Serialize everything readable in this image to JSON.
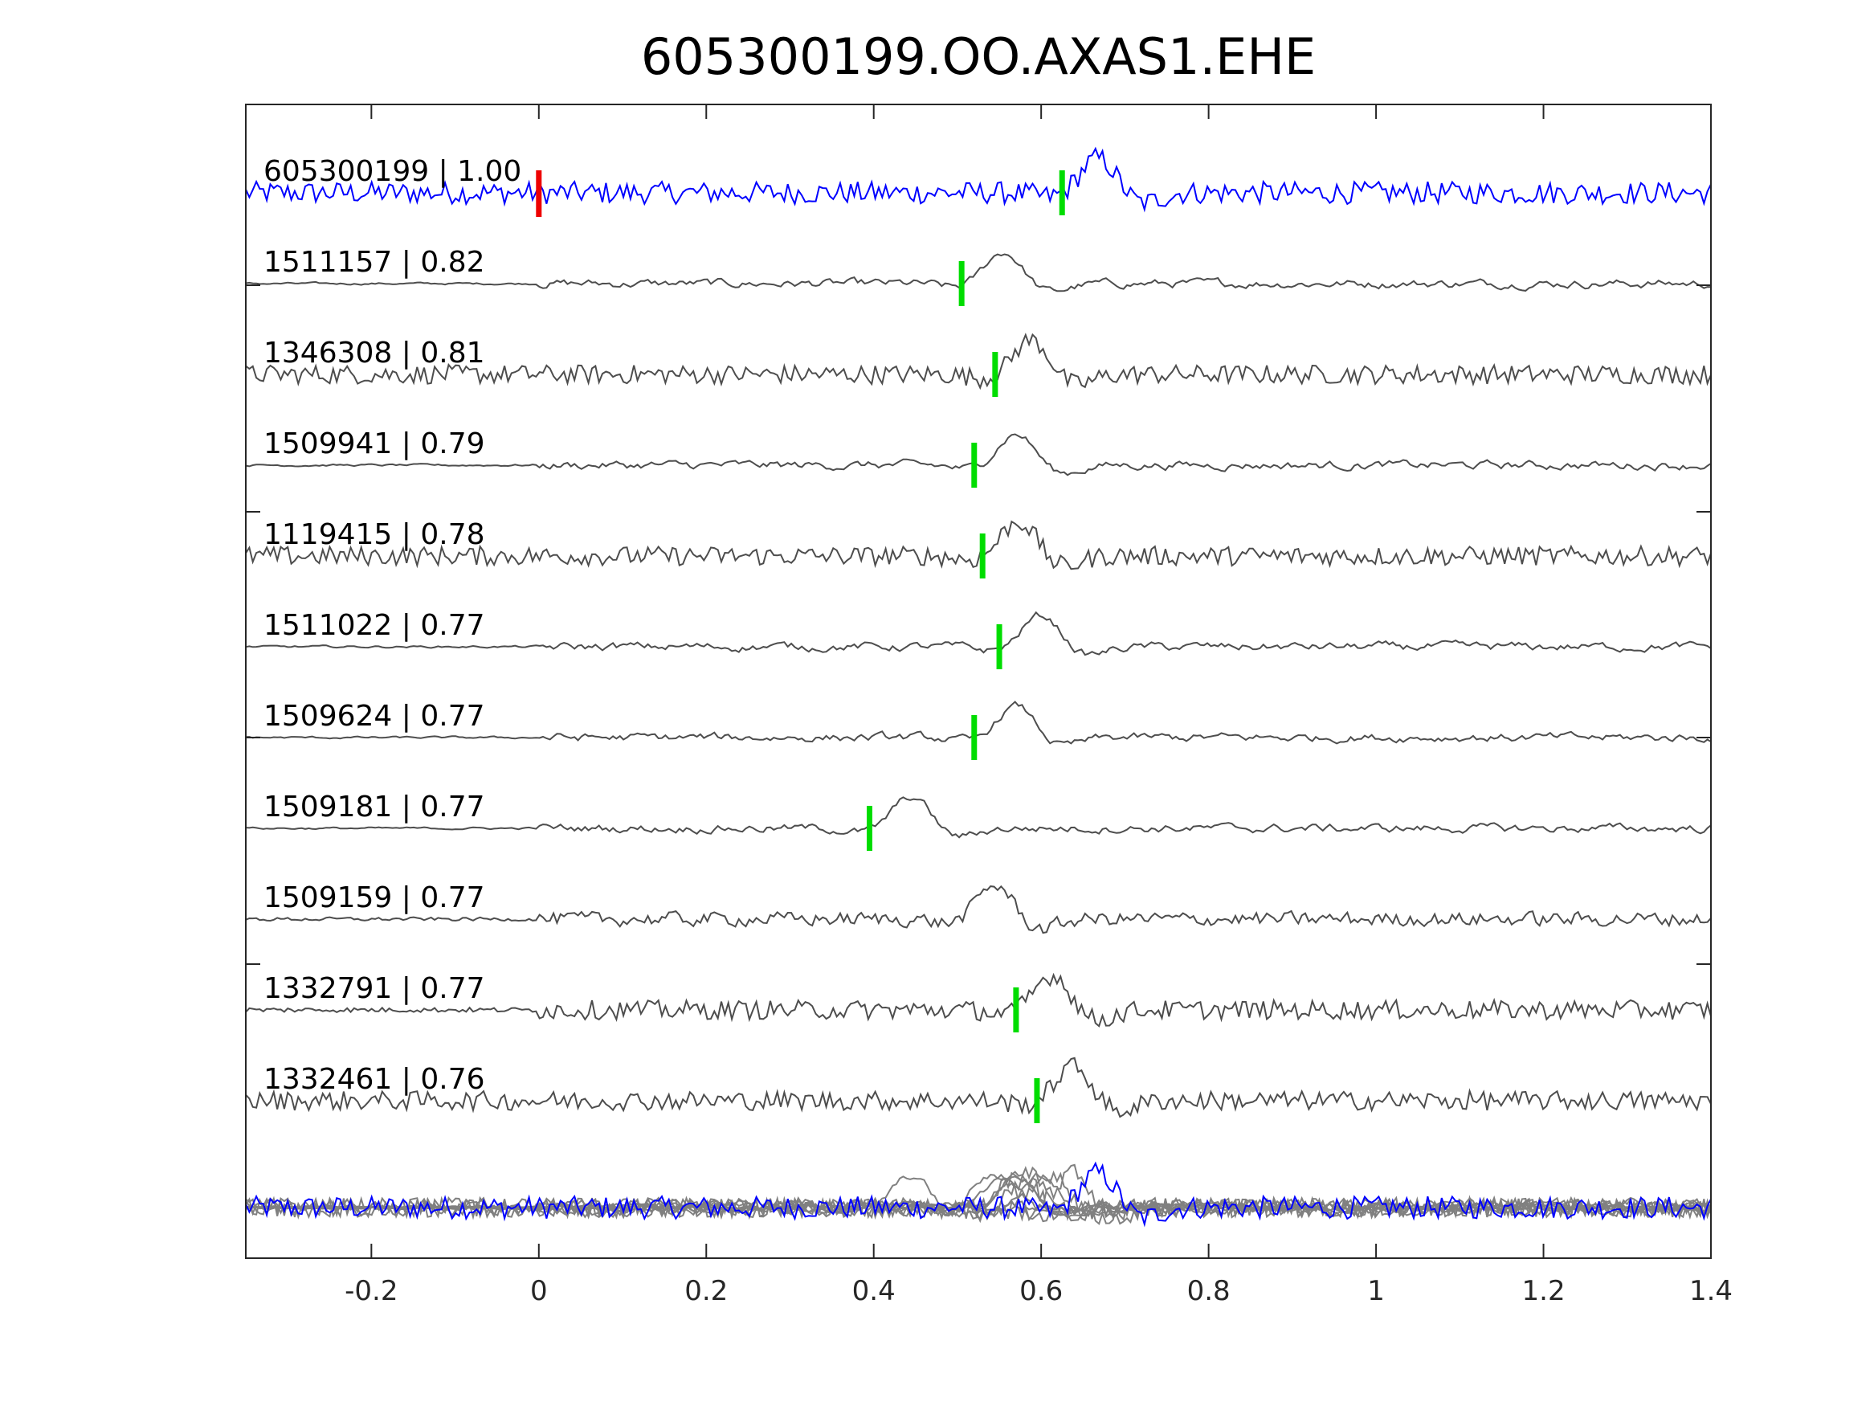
{
  "chart_data": {
    "type": "line",
    "title": "605300199.OO.AXAS1.EHE",
    "xlabel": "",
    "ylabel": "",
    "xlim": [
      -0.35,
      1.4
    ],
    "xticks": [
      -0.2,
      0,
      0.2,
      0.4,
      0.6,
      0.8,
      1,
      1.2,
      1.4
    ],
    "xtick_labels": [
      "-0.2",
      "0",
      "0.2",
      "0.4",
      "0.6",
      "0.8",
      "1",
      "1.2",
      "1.4"
    ],
    "grid": false,
    "colors": {
      "master": "#0000ff",
      "trace": "#4d4d4d",
      "stack": "#808080",
      "pick": "#00dd00",
      "origin_pick": "#ee0000"
    },
    "traces": [
      {
        "id": "605300199",
        "cc": "1.00",
        "label": "605300199 | 1.00",
        "pick": 0.625,
        "ref_pick": 0,
        "master": true
      },
      {
        "id": "1511157",
        "cc": "0.82",
        "label": "1511157 | 0.82",
        "pick": 0.505
      },
      {
        "id": "1346308",
        "cc": "0.81",
        "label": "1346308 | 0.81",
        "pick": 0.545
      },
      {
        "id": "1509941",
        "cc": "0.79",
        "label": "1509941 | 0.79",
        "pick": 0.52
      },
      {
        "id": "1119415",
        "cc": "0.78",
        "label": "1119415 | 0.78",
        "pick": 0.53
      },
      {
        "id": "1511022",
        "cc": "0.77",
        "label": "1511022 | 0.77",
        "pick": 0.55
      },
      {
        "id": "1509624",
        "cc": "0.77",
        "label": "1509624 | 0.77",
        "pick": 0.52
      },
      {
        "id": "1509181",
        "cc": "0.77",
        "label": "1509181 | 0.77",
        "pick": 0.395
      },
      {
        "id": "1509159",
        "cc": "0.77",
        "label": "1509159 | 0.77",
        "pick": null
      },
      {
        "id": "1332791",
        "cc": "0.77",
        "label": "1332791 | 0.77",
        "pick": 0.57
      },
      {
        "id": "1332461",
        "cc": "0.76",
        "label": "1332461 | 0.76",
        "pick": 0.595
      }
    ]
  }
}
